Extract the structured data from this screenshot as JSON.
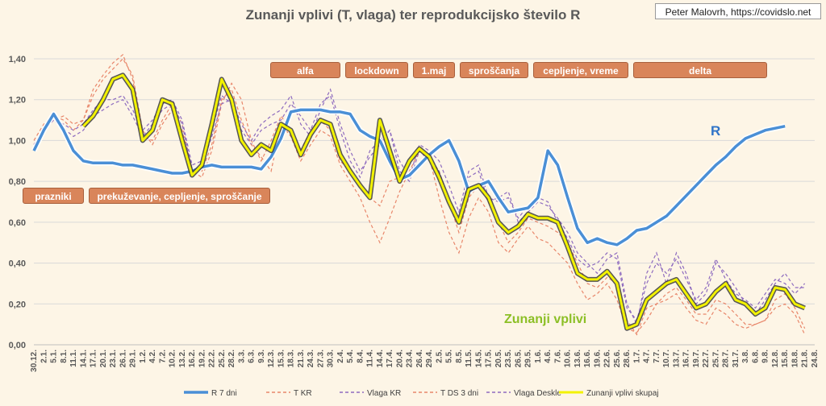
{
  "credit": "Peter Malovrh, https://covidslo.net",
  "chart_data": {
    "type": "line",
    "title": "Zunanji vplivi (T, vlaga) ter reprodukcijsko število R",
    "ylim": [
      0,
      1.4
    ],
    "y_ticks": [
      "0,00",
      "0,20",
      "0,40",
      "0,60",
      "0,80",
      "1,00",
      "1,20",
      "1,40"
    ],
    "grid": true,
    "legend_position": "bottom",
    "x_labels": [
      "30.12.",
      "2.1.",
      "5.1.",
      "8.1.",
      "11.1.",
      "14.1.",
      "17.1.",
      "20.1.",
      "23.1.",
      "26.1.",
      "29.1.",
      "1.2.",
      "4.2.",
      "7.2.",
      "10.2.",
      "13.2.",
      "16.2.",
      "19.2.",
      "22.2.",
      "25.2.",
      "28.2.",
      "3.3.",
      "6.3.",
      "9.3.",
      "12.3.",
      "15.3.",
      "18.3.",
      "21.3.",
      "24.3.",
      "27.3.",
      "30.3.",
      "2.4.",
      "5.4.",
      "8.4.",
      "11.4.",
      "14.4.",
      "17.4.",
      "20.4.",
      "23.4.",
      "26.4.",
      "29.4.",
      "2.5.",
      "5.5.",
      "8.5.",
      "11.5.",
      "14.5.",
      "17.5.",
      "20.5.",
      "23.5.",
      "26.5.",
      "29.5.",
      "1.6.",
      "4.6.",
      "7.6.",
      "10.6.",
      "13.6.",
      "16.6.",
      "19.6.",
      "22.6.",
      "25.6.",
      "28.6.",
      "1.7.",
      "4.7.",
      "7.7.",
      "10.7.",
      "13.7.",
      "16.7.",
      "19.7.",
      "22.7.",
      "25.7.",
      "28.7.",
      "31.7.",
      "3.8.",
      "6.8.",
      "9.8.",
      "12.8.",
      "15.8.",
      "18.8.",
      "21.8.",
      "24.8."
    ],
    "series_labels": {
      "r": "R",
      "external": "Zunanji vplivi"
    },
    "annotations": [
      {
        "text": "prazniki"
      },
      {
        "text": "prekuževanje, cepljenje, sproščanje"
      },
      {
        "text": "alfa"
      },
      {
        "text": "lockdown"
      },
      {
        "text": "1.maj"
      },
      {
        "text": "sproščanja"
      },
      {
        "text": "cepljenje, vreme"
      },
      {
        "text": "delta"
      }
    ],
    "series": [
      {
        "name": "R 7 dni",
        "color": "#4a8fd6",
        "style": "solid",
        "values": [
          0.95,
          1.05,
          1.13,
          1.05,
          0.95,
          0.9,
          0.89,
          0.89,
          0.89,
          0.88,
          0.88,
          0.87,
          0.86,
          0.85,
          0.84,
          0.84,
          0.85,
          0.87,
          0.88,
          0.87,
          0.87,
          0.87,
          0.87,
          0.86,
          0.92,
          1.01,
          1.14,
          1.15,
          1.15,
          1.15,
          1.14,
          1.14,
          1.13,
          1.05,
          1.02,
          1.0,
          0.9,
          0.81,
          0.83,
          0.88,
          0.93,
          0.97,
          1.0,
          0.9,
          0.75,
          0.78,
          0.8,
          0.72,
          0.65,
          0.66,
          0.67,
          0.72,
          0.95,
          0.88,
          0.72,
          0.57,
          0.5,
          0.52,
          0.5,
          0.49,
          0.52,
          0.56,
          0.57,
          0.6,
          0.63,
          0.68,
          0.73,
          0.78,
          0.83,
          0.88,
          0.92,
          0.97,
          1.01,
          1.03,
          1.05,
          1.06,
          1.07,
          null,
          null,
          null
        ]
      },
      {
        "name": "T KR",
        "color": "#e8866a",
        "style": "dashed",
        "values": [
          1.0,
          1.08,
          1.12,
          1.1,
          1.05,
          1.1,
          1.22,
          1.3,
          1.35,
          1.4,
          1.32,
          1.05,
          0.98,
          1.08,
          1.15,
          1.05,
          0.85,
          0.82,
          0.95,
          1.18,
          1.28,
          1.2,
          1.0,
          0.9,
          1.0,
          1.12,
          1.05,
          0.95,
          1.05,
          1.1,
          1.05,
          0.9,
          0.85,
          0.78,
          0.72,
          0.68,
          0.8,
          0.82,
          0.9,
          0.95,
          0.92,
          0.85,
          0.7,
          0.55,
          0.72,
          0.78,
          0.7,
          0.6,
          0.5,
          0.55,
          0.62,
          0.6,
          0.58,
          0.55,
          0.5,
          0.4,
          0.3,
          0.28,
          0.33,
          0.3,
          0.12,
          0.05,
          0.18,
          0.2,
          0.25,
          0.28,
          0.22,
          0.15,
          0.15,
          0.22,
          0.2,
          0.15,
          0.1,
          0.1,
          0.12,
          0.22,
          0.25,
          0.18,
          0.08,
          null
        ]
      },
      {
        "name": "Vlaga KR",
        "color": "#8e6bbf",
        "style": "dashed",
        "values": [
          0.98,
          1.05,
          1.1,
          1.08,
          1.05,
          1.08,
          1.15,
          1.2,
          1.2,
          1.22,
          1.15,
          1.05,
          1.1,
          1.18,
          1.2,
          1.1,
          0.88,
          0.9,
          1.05,
          1.22,
          1.18,
          1.05,
          0.98,
          1.05,
          1.08,
          1.1,
          1.18,
          1.12,
          1.05,
          1.18,
          1.22,
          1.05,
          0.9,
          0.82,
          0.95,
          1.0,
          1.05,
          0.85,
          0.8,
          0.95,
          0.9,
          0.85,
          0.7,
          0.6,
          0.82,
          0.85,
          0.7,
          0.72,
          0.75,
          0.6,
          0.65,
          0.7,
          0.68,
          0.62,
          0.55,
          0.45,
          0.4,
          0.35,
          0.42,
          0.45,
          0.2,
          0.1,
          0.35,
          0.45,
          0.3,
          0.45,
          0.35,
          0.2,
          0.25,
          0.4,
          0.35,
          0.28,
          0.2,
          0.15,
          0.22,
          0.3,
          0.35,
          0.28,
          0.28,
          null
        ]
      },
      {
        "name": "T DS 3 dni",
        "color": "#e8866a",
        "style": "dashed",
        "values": [
          0.98,
          1.05,
          1.1,
          1.12,
          1.08,
          1.1,
          1.25,
          1.32,
          1.38,
          1.42,
          1.3,
          1.02,
          1.0,
          1.1,
          1.18,
          1.08,
          0.85,
          0.85,
          0.98,
          1.2,
          1.25,
          1.1,
          0.98,
          0.92,
          0.85,
          1.08,
          1.02,
          0.9,
          0.98,
          1.05,
          1.02,
          0.88,
          0.8,
          0.72,
          0.6,
          0.5,
          0.62,
          0.75,
          0.85,
          0.95,
          0.92,
          0.72,
          0.55,
          0.45,
          0.62,
          0.72,
          0.65,
          0.5,
          0.45,
          0.52,
          0.58,
          0.52,
          0.5,
          0.45,
          0.4,
          0.3,
          0.22,
          0.25,
          0.3,
          0.22,
          0.08,
          0.06,
          0.12,
          0.2,
          0.22,
          0.25,
          0.18,
          0.12,
          0.1,
          0.18,
          0.15,
          0.1,
          0.08,
          0.1,
          0.12,
          0.18,
          0.2,
          0.15,
          0.05,
          null
        ]
      },
      {
        "name": "Vlaga Deskle",
        "color": "#8e6bbf",
        "style": "dashed",
        "values": [
          0.98,
          1.05,
          1.1,
          1.06,
          1.02,
          1.05,
          1.12,
          1.15,
          1.18,
          1.2,
          1.12,
          1.02,
          1.08,
          1.15,
          1.18,
          1.08,
          0.86,
          0.88,
          1.02,
          1.18,
          1.2,
          1.08,
          1.0,
          1.08,
          1.12,
          1.15,
          1.22,
          1.08,
          1.02,
          1.15,
          1.25,
          1.08,
          0.95,
          0.85,
          0.92,
          0.98,
          1.05,
          0.9,
          0.82,
          0.98,
          0.95,
          0.9,
          0.78,
          0.65,
          0.85,
          0.88,
          0.72,
          0.7,
          0.72,
          0.62,
          0.68,
          0.72,
          0.7,
          0.6,
          0.52,
          0.42,
          0.38,
          0.4,
          0.45,
          0.42,
          0.18,
          0.12,
          0.3,
          0.4,
          0.35,
          0.42,
          0.32,
          0.22,
          0.28,
          0.42,
          0.32,
          0.25,
          0.22,
          0.18,
          0.25,
          0.32,
          0.3,
          0.25,
          0.3,
          null
        ]
      },
      {
        "name": "Zunanji vplivi skupaj",
        "color": "#f2f200",
        "style": "bold",
        "values": [
          null,
          null,
          null,
          null,
          null,
          1.07,
          1.12,
          1.2,
          1.3,
          1.32,
          1.25,
          1.0,
          1.05,
          1.2,
          1.18,
          1.0,
          0.83,
          0.88,
          1.08,
          1.3,
          1.2,
          1.0,
          0.93,
          0.98,
          0.95,
          1.08,
          1.05,
          0.93,
          1.03,
          1.1,
          1.08,
          0.93,
          0.85,
          0.78,
          0.72,
          1.1,
          0.95,
          0.8,
          0.9,
          0.96,
          0.92,
          0.82,
          0.7,
          0.6,
          0.76,
          0.78,
          0.72,
          0.6,
          0.55,
          0.58,
          0.64,
          0.62,
          0.62,
          0.6,
          0.48,
          0.35,
          0.32,
          0.32,
          0.36,
          0.3,
          0.08,
          0.1,
          0.22,
          0.26,
          0.3,
          0.32,
          0.25,
          0.18,
          0.2,
          0.26,
          0.3,
          0.22,
          0.2,
          0.15,
          0.18,
          0.28,
          0.27,
          0.2,
          0.18,
          null
        ]
      }
    ]
  }
}
